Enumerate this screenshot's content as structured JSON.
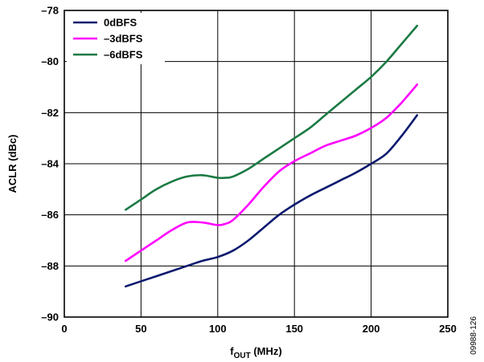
{
  "chart_data": {
    "type": "line",
    "xlabel_main": "f",
    "xlabel_sub": "OUT",
    "xlabel_unit": " (MHz)",
    "ylabel": "ACLR (dBc)",
    "xlim": [
      0,
      250
    ],
    "ylim": [
      -90,
      -78
    ],
    "xticks": [
      0,
      50,
      100,
      150,
      200,
      250
    ],
    "yticks": [
      -90,
      -88,
      -86,
      -84,
      -82,
      -80,
      -78
    ],
    "xtick_labels": [
      "0",
      "50",
      "100",
      "150",
      "200",
      "250"
    ],
    "ytick_labels": [
      "–90",
      "–88",
      "–86",
      "–84",
      "–82",
      "–80",
      "–78"
    ],
    "grid": true,
    "legend_position": "top-left",
    "figure_id": "09988-126",
    "series": [
      {
        "name": "0dBFS",
        "color": "#0a1a6e",
        "x": [
          40,
          60,
          80,
          90,
          100,
          110,
          120,
          130,
          140,
          150,
          160,
          170,
          180,
          190,
          200,
          210,
          220,
          230
        ],
        "y": [
          -88.8,
          -88.4,
          -88.0,
          -87.8,
          -87.65,
          -87.4,
          -87.0,
          -86.5,
          -86.0,
          -85.6,
          -85.25,
          -84.95,
          -84.65,
          -84.35,
          -84.0,
          -83.6,
          -82.9,
          -82.1
        ]
      },
      {
        "name": "–3dBFS",
        "color": "#ff00ff",
        "x": [
          40,
          50,
          60,
          70,
          80,
          90,
          100,
          105,
          110,
          120,
          130,
          140,
          150,
          160,
          170,
          180,
          190,
          200,
          210,
          220,
          230
        ],
        "y": [
          -87.8,
          -87.4,
          -87.0,
          -86.6,
          -86.3,
          -86.3,
          -86.4,
          -86.35,
          -86.2,
          -85.6,
          -84.9,
          -84.3,
          -83.9,
          -83.6,
          -83.3,
          -83.1,
          -82.9,
          -82.6,
          -82.2,
          -81.6,
          -80.9
        ]
      },
      {
        "name": "–6dBFS",
        "color": "#1a7a43",
        "x": [
          40,
          50,
          60,
          70,
          80,
          90,
          100,
          105,
          110,
          120,
          130,
          140,
          150,
          160,
          170,
          180,
          190,
          200,
          210,
          220,
          230
        ],
        "y": [
          -85.8,
          -85.4,
          -85.0,
          -84.7,
          -84.5,
          -84.45,
          -84.55,
          -84.55,
          -84.5,
          -84.2,
          -83.8,
          -83.4,
          -83.0,
          -82.6,
          -82.1,
          -81.6,
          -81.1,
          -80.6,
          -80.0,
          -79.3,
          -78.6
        ]
      }
    ]
  }
}
